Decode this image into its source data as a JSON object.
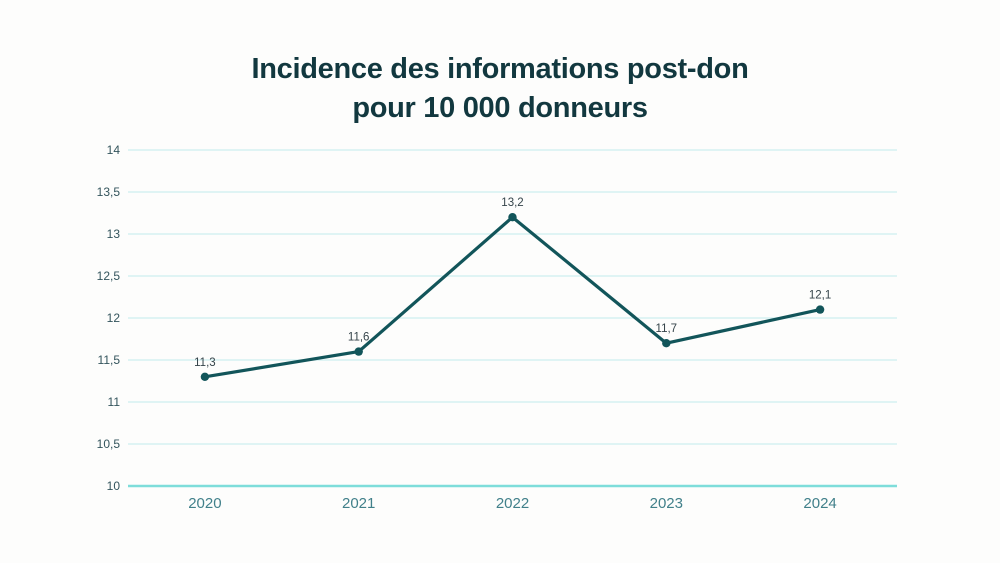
{
  "title": {
    "line1": "Incidence des informations post-don",
    "line2": "pour 10 000 donneurs",
    "color": "#12383f"
  },
  "chart_data": {
    "type": "line",
    "title": "Incidence des informations post-don pour 10 000 donneurs",
    "categories": [
      "2020",
      "2021",
      "2022",
      "2023",
      "2024"
    ],
    "series": [
      {
        "name": "Incidence des informations post-don pour 10 000 donneurs",
        "values": [
          11.3,
          11.6,
          13.2,
          11.7,
          12.1
        ],
        "point_labels": [
          "11,3",
          "11,6",
          "13,2",
          "11,7",
          "12,1"
        ]
      }
    ],
    "xlabel": "",
    "ylabel": "",
    "ylim": [
      10,
      14
    ],
    "yticks": [
      {
        "value": 14,
        "label": "14"
      },
      {
        "value": 13.5,
        "label": "13,5"
      },
      {
        "value": 13,
        "label": "13"
      },
      {
        "value": 12.5,
        "label": "12,5"
      },
      {
        "value": 12,
        "label": "12"
      },
      {
        "value": 11.5,
        "label": "11,5"
      },
      {
        "value": 11,
        "label": "11"
      },
      {
        "value": 10.5,
        "label": "10,5"
      },
      {
        "value": 10,
        "label": "10"
      }
    ],
    "grid": "horizontal-only",
    "legend": "none",
    "colors": {
      "line": "#12555a",
      "marker": "#12555a",
      "gridline": "#cdeef0",
      "axis_line": "#7eddda",
      "ytick_label": "#33545c",
      "xtick_label": "#41808a",
      "point_label": "#35444a"
    }
  }
}
